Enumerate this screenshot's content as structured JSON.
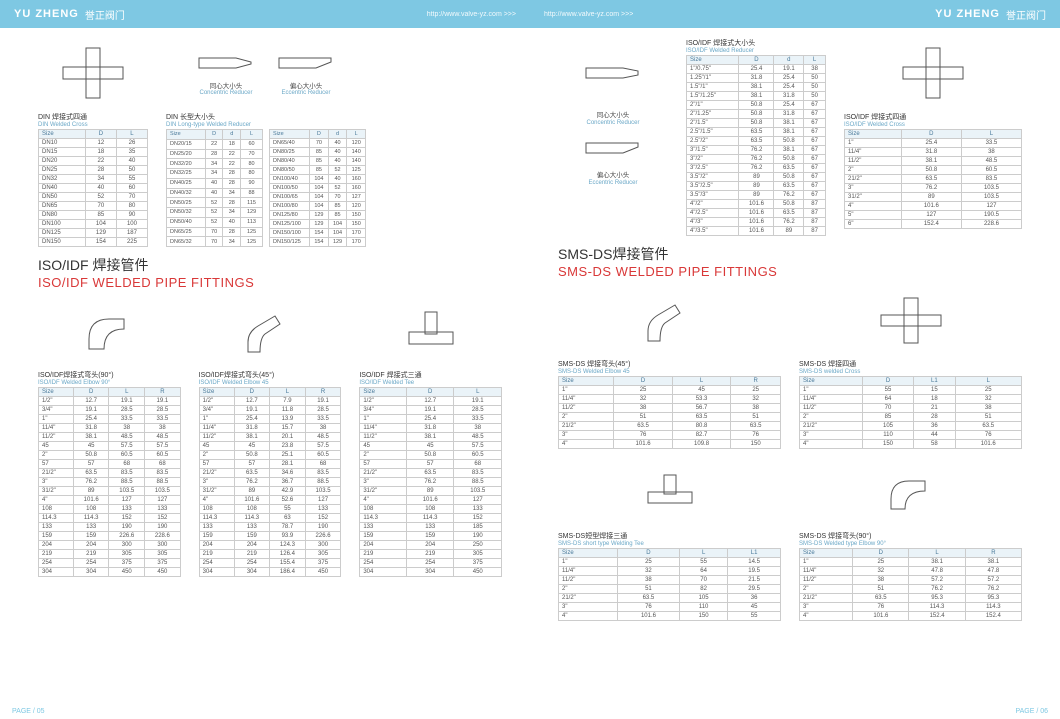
{
  "brand": "YU ZHENG",
  "brand_cn": "誉正阀门",
  "url": "http://www.valve-yz.com >>>",
  "page_left": "PAGE / 05",
  "page_right": "PAGE / 06",
  "section_iso": {
    "cn": "ISO/IDF 焊接管件",
    "en": "ISO/IDF WELDED PIPE FITTINGS"
  },
  "section_sms": {
    "cn": "SMS-DS焊接管件",
    "en": "SMS-DS WELDED PIPE FITTINGS"
  },
  "din_cross": {
    "title": "DIN 焊接式四通",
    "sub": "DIN Welded Cross",
    "cols": [
      "Size",
      "D",
      "L"
    ],
    "rows": [
      [
        "DN10",
        "12",
        "26"
      ],
      [
        "DN15",
        "18",
        "35"
      ],
      [
        "DN20",
        "22",
        "40"
      ],
      [
        "DN25",
        "28",
        "50"
      ],
      [
        "DN32",
        "34",
        "55"
      ],
      [
        "DN40",
        "40",
        "60"
      ],
      [
        "DN50",
        "52",
        "70"
      ],
      [
        "DN65",
        "70",
        "80"
      ],
      [
        "DN80",
        "85",
        "90"
      ],
      [
        "DN100",
        "104",
        "100"
      ],
      [
        "DN125",
        "129",
        "187"
      ],
      [
        "DN150",
        "154",
        "225"
      ]
    ]
  },
  "din_reducer": {
    "title": "DIN 长型大小头",
    "sub": "DIN Long-type Welded Reducer",
    "cols": [
      "Size",
      "D",
      "d",
      "L"
    ],
    "rows_a": [
      [
        "DN20/15",
        "22",
        "18",
        "60"
      ],
      [
        "DN25/20",
        "28",
        "22",
        "70"
      ],
      [
        "DN32/20",
        "34",
        "22",
        "80"
      ],
      [
        "DN32/25",
        "34",
        "28",
        "80"
      ],
      [
        "DN40/25",
        "40",
        "28",
        "90"
      ],
      [
        "DN40/32",
        "40",
        "34",
        "88"
      ],
      [
        "DN50/25",
        "52",
        "28",
        "115"
      ],
      [
        "DN50/32",
        "52",
        "34",
        "129"
      ],
      [
        "DN50/40",
        "52",
        "40",
        "113"
      ],
      [
        "DN65/25",
        "70",
        "28",
        "125"
      ],
      [
        "DN65/32",
        "70",
        "34",
        "125"
      ]
    ],
    "rows_b": [
      [
        "DN65/40",
        "70",
        "40",
        "120"
      ],
      [
        "DN80/25",
        "85",
        "40",
        "140"
      ],
      [
        "DN80/40",
        "85",
        "40",
        "140"
      ],
      [
        "DN80/50",
        "85",
        "52",
        "125"
      ],
      [
        "DN100/40",
        "104",
        "40",
        "160"
      ],
      [
        "DN100/50",
        "104",
        "52",
        "160"
      ],
      [
        "DN100/65",
        "104",
        "70",
        "127"
      ],
      [
        "DN100/80",
        "104",
        "85",
        "120"
      ],
      [
        "DN125/80",
        "129",
        "85",
        "150"
      ],
      [
        "DN125/100",
        "129",
        "104",
        "150"
      ],
      [
        "DN150/100",
        "154",
        "104",
        "170"
      ],
      [
        "DN150/125",
        "154",
        "129",
        "170"
      ]
    ]
  },
  "conc_reducer": {
    "cap_cn": "同心大小头",
    "cap_en": "Concentric Reducer"
  },
  "ecc_reducer": {
    "cap_cn": "偏心大小头",
    "cap_en": "Eccentric Reducer"
  },
  "iso_reducer": {
    "title": "ISO/IDF 焊接式大小头",
    "sub": "ISO/IDF Welded Reducer",
    "cols": [
      "Size",
      "D",
      "d",
      "L"
    ],
    "rows": [
      [
        "1\"/0.75\"",
        "25.4",
        "19.1",
        "38"
      ],
      [
        "1.25\"/1\"",
        "31.8",
        "25.4",
        "50"
      ],
      [
        "1.5\"/1\"",
        "38.1",
        "25.4",
        "50"
      ],
      [
        "1.5\"/1.25\"",
        "38.1",
        "31.8",
        "50"
      ],
      [
        "2\"/1\"",
        "50.8",
        "25.4",
        "67"
      ],
      [
        "2\"/1.25\"",
        "50.8",
        "31.8",
        "67"
      ],
      [
        "2\"/1.5\"",
        "50.8",
        "38.1",
        "67"
      ],
      [
        "2.5\"/1.5\"",
        "63.5",
        "38.1",
        "67"
      ],
      [
        "2.5\"/2\"",
        "63.5",
        "50.8",
        "67"
      ],
      [
        "3\"/1.5\"",
        "76.2",
        "38.1",
        "67"
      ],
      [
        "3\"/2\"",
        "76.2",
        "50.8",
        "67"
      ],
      [
        "3\"/2.5\"",
        "76.2",
        "63.5",
        "67"
      ],
      [
        "3.5\"/2\"",
        "89",
        "50.8",
        "67"
      ],
      [
        "3.5\"/2.5\"",
        "89",
        "63.5",
        "67"
      ],
      [
        "3.5\"/3\"",
        "89",
        "76.2",
        "67"
      ],
      [
        "4\"/2\"",
        "101.6",
        "50.8",
        "87"
      ],
      [
        "4\"/2.5\"",
        "101.6",
        "63.5",
        "87"
      ],
      [
        "4\"/3\"",
        "101.6",
        "76.2",
        "87"
      ],
      [
        "4\"/3.5\"",
        "101.6",
        "89",
        "87"
      ]
    ]
  },
  "iso_cross": {
    "title": "ISO/IDF 焊接式四通",
    "sub": "ISO/IDF Welded Cross",
    "cols": [
      "Size",
      "D",
      "L"
    ],
    "rows": [
      [
        "1\"",
        "25.4",
        "33.5"
      ],
      [
        "11/4\"",
        "31.8",
        "38"
      ],
      [
        "11/2\"",
        "38.1",
        "48.5"
      ],
      [
        "2\"",
        "50.8",
        "60.5"
      ],
      [
        "21/2\"",
        "63.5",
        "83.5"
      ],
      [
        "3\"",
        "76.2",
        "103.5"
      ],
      [
        "31/2\"",
        "89",
        "103.5"
      ],
      [
        "4\"",
        "101.6",
        "127"
      ],
      [
        "5\"",
        "127",
        "190.5"
      ],
      [
        "6\"",
        "152.4",
        "228.6"
      ]
    ]
  },
  "iso_elbow90": {
    "title": "ISO/IDF焊接式弯头(90°)",
    "sub": "ISO/IDF Welded Elbow 90°",
    "cols": [
      "Size",
      "D",
      "L",
      "R"
    ],
    "rows": [
      [
        "1/2\"",
        "12.7",
        "19.1",
        "19.1"
      ],
      [
        "3/4\"",
        "19.1",
        "28.5",
        "28.5"
      ],
      [
        "1\"",
        "25.4",
        "33.5",
        "33.5"
      ],
      [
        "11/4\"",
        "31.8",
        "38",
        "38"
      ],
      [
        "11/2\"",
        "38.1",
        "48.5",
        "48.5"
      ],
      [
        "45",
        "45",
        "57.5",
        "57.5"
      ],
      [
        "2\"",
        "50.8",
        "60.5",
        "60.5"
      ],
      [
        "57",
        "57",
        "68",
        "68"
      ],
      [
        "21/2\"",
        "63.5",
        "83.5",
        "83.5"
      ],
      [
        "3\"",
        "76.2",
        "88.5",
        "88.5"
      ],
      [
        "31/2\"",
        "89",
        "103.5",
        "103.5"
      ],
      [
        "4\"",
        "101.6",
        "127",
        "127"
      ],
      [
        "108",
        "108",
        "133",
        "133"
      ],
      [
        "114.3",
        "114.3",
        "152",
        "152"
      ],
      [
        "133",
        "133",
        "190",
        "190"
      ],
      [
        "159",
        "159",
        "226.6",
        "228.6"
      ],
      [
        "204",
        "204",
        "300",
        "300"
      ],
      [
        "219",
        "219",
        "305",
        "305"
      ],
      [
        "254",
        "254",
        "375",
        "375"
      ],
      [
        "304",
        "304",
        "450",
        "450"
      ]
    ]
  },
  "iso_elbow45": {
    "title": "ISO/IDF焊接式弯头(45°)",
    "sub": "ISO/IDF Welded Elbow 45",
    "cols": [
      "Size",
      "D",
      "L",
      "R"
    ],
    "rows": [
      [
        "1/2\"",
        "12.7",
        "7.9",
        "19.1"
      ],
      [
        "3/4\"",
        "19.1",
        "11.8",
        "28.5"
      ],
      [
        "1\"",
        "25.4",
        "13.9",
        "33.5"
      ],
      [
        "11/4\"",
        "31.8",
        "15.7",
        "38"
      ],
      [
        "11/2\"",
        "38.1",
        "20.1",
        "48.5"
      ],
      [
        "45",
        "45",
        "23.8",
        "57.5"
      ],
      [
        "2\"",
        "50.8",
        "25.1",
        "60.5"
      ],
      [
        "57",
        "57",
        "28.1",
        "68"
      ],
      [
        "21/2\"",
        "63.5",
        "34.6",
        "83.5"
      ],
      [
        "3\"",
        "76.2",
        "36.7",
        "88.5"
      ],
      [
        "31/2\"",
        "89",
        "42.9",
        "103.5"
      ],
      [
        "4\"",
        "101.6",
        "52.6",
        "127"
      ],
      [
        "108",
        "108",
        "55",
        "133"
      ],
      [
        "114.3",
        "114.3",
        "63",
        "152"
      ],
      [
        "133",
        "133",
        "78.7",
        "190"
      ],
      [
        "159",
        "159",
        "93.9",
        "226.6"
      ],
      [
        "204",
        "204",
        "124.3",
        "300"
      ],
      [
        "219",
        "219",
        "126.4",
        "305"
      ],
      [
        "254",
        "254",
        "155.4",
        "375"
      ],
      [
        "304",
        "304",
        "186.4",
        "450"
      ]
    ]
  },
  "iso_tee": {
    "title": "ISO/IDF 焊接式三通",
    "sub": "ISO/IDF Welded Tee",
    "cols": [
      "Size",
      "D",
      "L"
    ],
    "rows": [
      [
        "1/2\"",
        "12.7",
        "19.1"
      ],
      [
        "3/4\"",
        "19.1",
        "28.5"
      ],
      [
        "1\"",
        "25.4",
        "33.5"
      ],
      [
        "11/4\"",
        "31.8",
        "38"
      ],
      [
        "11/2\"",
        "38.1",
        "48.5"
      ],
      [
        "45",
        "45",
        "57.5"
      ],
      [
        "2\"",
        "50.8",
        "60.5"
      ],
      [
        "57",
        "57",
        "68"
      ],
      [
        "21/2\"",
        "63.5",
        "83.5"
      ],
      [
        "3\"",
        "76.2",
        "88.5"
      ],
      [
        "31/2\"",
        "89",
        "103.5"
      ],
      [
        "4\"",
        "101.6",
        "127"
      ],
      [
        "108",
        "108",
        "133"
      ],
      [
        "114.3",
        "114.3",
        "152"
      ],
      [
        "133",
        "133",
        "185"
      ],
      [
        "159",
        "159",
        "190"
      ],
      [
        "204",
        "204",
        "250"
      ],
      [
        "219",
        "219",
        "305"
      ],
      [
        "254",
        "254",
        "375"
      ],
      [
        "304",
        "304",
        "450"
      ]
    ]
  },
  "sms_elbow45": {
    "title": "SMS-DS 焊接弯头(45°)",
    "sub": "SMS-DS Welded Elbow 45",
    "cols": [
      "Size",
      "D",
      "L",
      "R"
    ],
    "rows": [
      [
        "1\"",
        "25",
        "45",
        "25"
      ],
      [
        "11/4\"",
        "32",
        "53.3",
        "32"
      ],
      [
        "11/2\"",
        "38",
        "56.7",
        "38"
      ],
      [
        "2\"",
        "51",
        "63.5",
        "51"
      ],
      [
        "21/2\"",
        "63.5",
        "80.8",
        "63.5"
      ],
      [
        "3\"",
        "76",
        "82.7",
        "76"
      ],
      [
        "4\"",
        "101.6",
        "109.8",
        "150"
      ]
    ]
  },
  "sms_cross": {
    "title": "SMS-DS 焊接四通",
    "sub": "SMS-DS welded Cross",
    "cols": [
      "Size",
      "D",
      "L1",
      "L"
    ],
    "rows": [
      [
        "1\"",
        "55",
        "15",
        "25"
      ],
      [
        "11/4\"",
        "64",
        "18",
        "32"
      ],
      [
        "11/2\"",
        "70",
        "21",
        "38"
      ],
      [
        "2\"",
        "85",
        "28",
        "51"
      ],
      [
        "21/2\"",
        "105",
        "36",
        "63.5"
      ],
      [
        "3\"",
        "110",
        "44",
        "76"
      ],
      [
        "4\"",
        "150",
        "58",
        "101.6"
      ]
    ]
  },
  "sms_tee": {
    "title": "SMS-DS短型焊接三通",
    "sub": "SMS-DS short type Welding Tee",
    "cols": [
      "Size",
      "D",
      "L",
      "L1"
    ],
    "rows": [
      [
        "1\"",
        "25",
        "55",
        "14.5"
      ],
      [
        "11/4\"",
        "32",
        "64",
        "19.5"
      ],
      [
        "11/2\"",
        "38",
        "70",
        "21.5"
      ],
      [
        "2\"",
        "51",
        "82",
        "29.5"
      ],
      [
        "21/2\"",
        "63.5",
        "105",
        "36"
      ],
      [
        "3\"",
        "76",
        "110",
        "45"
      ],
      [
        "4\"",
        "101.6",
        "150",
        "55"
      ]
    ]
  },
  "sms_elbow90": {
    "title": "SMS-DS 焊接弯头(90°)",
    "sub": "SMS-DS Welded type Elbow 90°",
    "cols": [
      "Size",
      "D",
      "L",
      "R"
    ],
    "rows": [
      [
        "1\"",
        "25",
        "38.1",
        "38.1"
      ],
      [
        "11/4\"",
        "32",
        "47.8",
        "47.8"
      ],
      [
        "11/2\"",
        "38",
        "57.2",
        "57.2"
      ],
      [
        "2\"",
        "51",
        "76.2",
        "76.2"
      ],
      [
        "21/2\"",
        "63.5",
        "95.3",
        "95.3"
      ],
      [
        "3\"",
        "76",
        "114.3",
        "114.3"
      ],
      [
        "4\"",
        "101.6",
        "152.4",
        "152.4"
      ]
    ]
  }
}
